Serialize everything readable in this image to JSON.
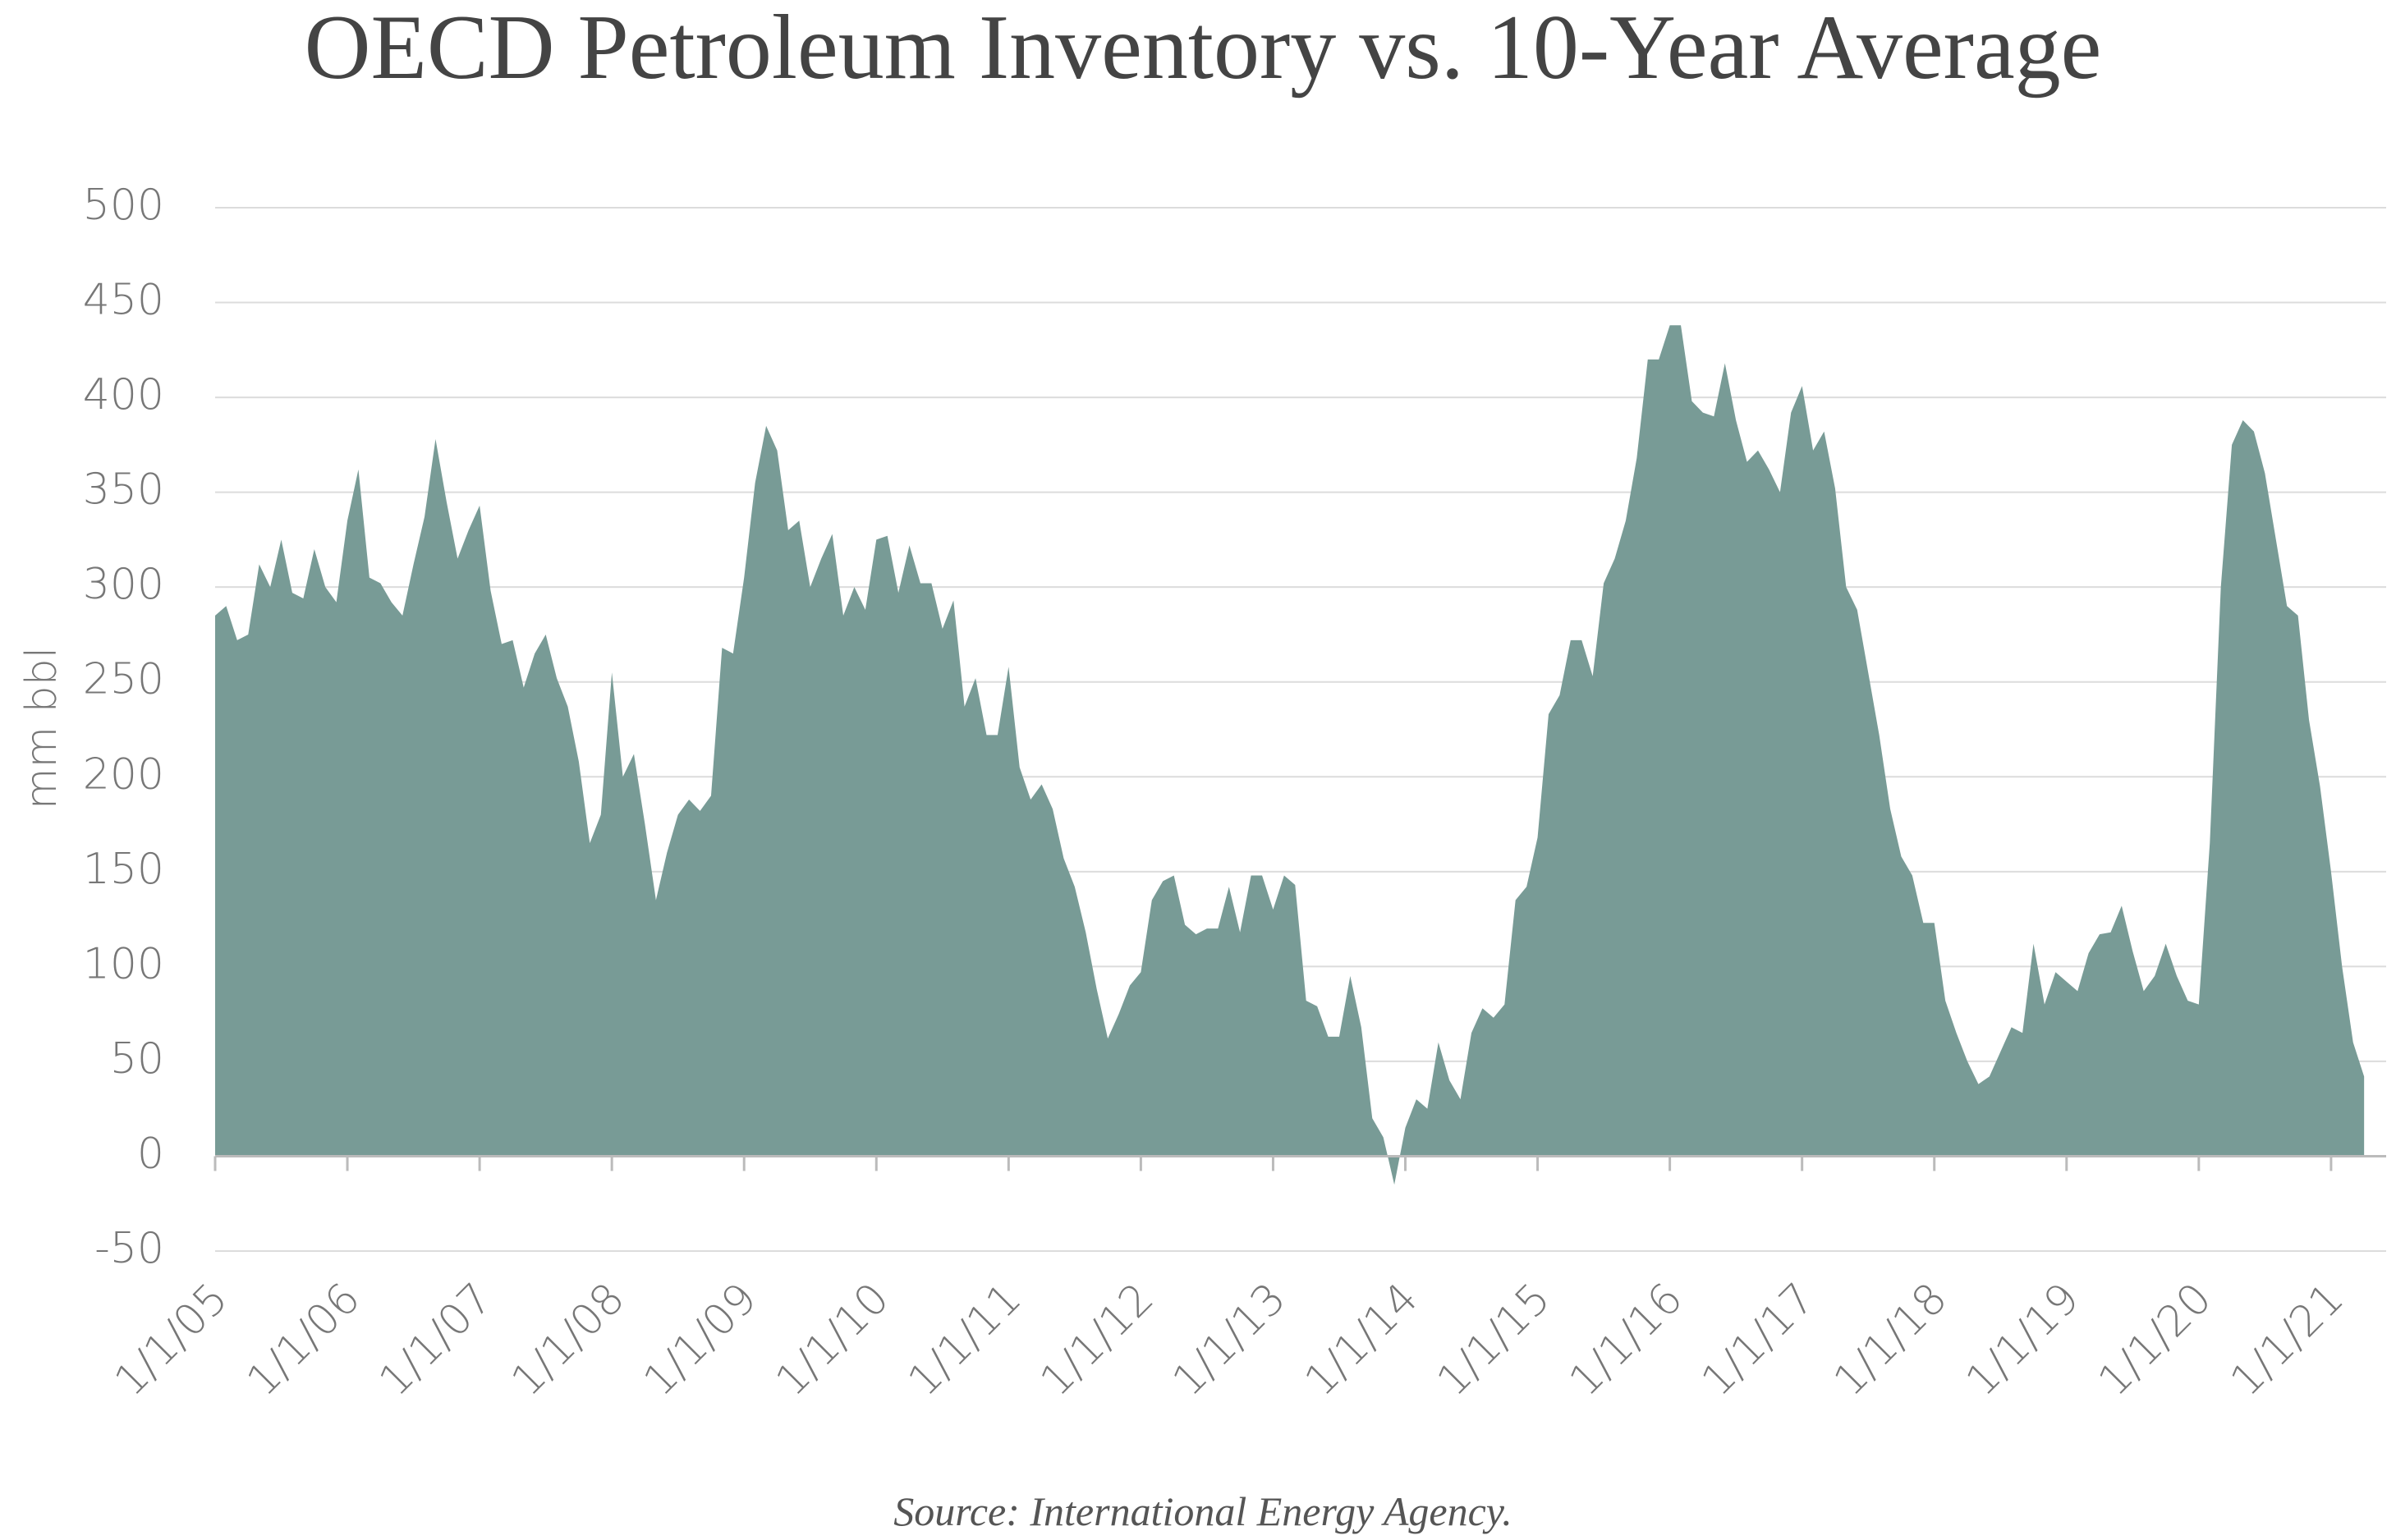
{
  "chart_data": {
    "type": "area",
    "title": "OECD Petroleum Inventory vs. 10-Year Average",
    "ylabel": "mm bbl",
    "source": "Source: International Energy Agency.",
    "color": "#789b96",
    "grid": true,
    "ylim": [
      -50,
      500
    ],
    "yticks": [
      -50,
      0,
      50,
      100,
      150,
      200,
      250,
      300,
      350,
      400,
      450,
      500
    ],
    "xlim": [
      "1/1/05",
      "6/1/21"
    ],
    "xticks": [
      "1/1/05",
      "1/1/06",
      "1/1/07",
      "1/1/08",
      "1/1/09",
      "1/1/10",
      "1/1/11",
      "1/1/12",
      "1/1/13",
      "1/1/14",
      "1/1/15",
      "1/1/16",
      "1/1/17",
      "1/1/18",
      "1/1/19",
      "1/1/20",
      "1/1/21"
    ],
    "x": [
      "1/1/05",
      "2/1/05",
      "3/1/05",
      "4/1/05",
      "5/1/05",
      "6/1/05",
      "7/1/05",
      "8/1/05",
      "9/1/05",
      "10/1/05",
      "11/1/05",
      "12/1/05",
      "1/1/06",
      "2/1/06",
      "3/1/06",
      "4/1/06",
      "5/1/06",
      "6/1/06",
      "7/1/06",
      "8/1/06",
      "9/1/06",
      "10/1/06",
      "11/1/06",
      "12/1/06",
      "1/1/07",
      "2/1/07",
      "3/1/07",
      "4/1/07",
      "5/1/07",
      "6/1/07",
      "7/1/07",
      "8/1/07",
      "9/1/07",
      "10/1/07",
      "11/1/07",
      "12/1/07",
      "1/1/08",
      "2/1/08",
      "3/1/08",
      "4/1/08",
      "5/1/08",
      "6/1/08",
      "7/1/08",
      "8/1/08",
      "9/1/08",
      "10/1/08",
      "11/1/08",
      "12/1/08",
      "1/1/09",
      "2/1/09",
      "3/1/09",
      "4/1/09",
      "5/1/09",
      "6/1/09",
      "7/1/09",
      "8/1/09",
      "9/1/09",
      "10/1/09",
      "11/1/09",
      "12/1/09",
      "1/1/10",
      "2/1/10",
      "3/1/10",
      "4/1/10",
      "5/1/10",
      "6/1/10",
      "7/1/10",
      "8/1/10",
      "9/1/10",
      "10/1/10",
      "11/1/10",
      "12/1/10",
      "1/1/11",
      "2/1/11",
      "3/1/11",
      "4/1/11",
      "5/1/11",
      "6/1/11",
      "7/1/11",
      "8/1/11",
      "9/1/11",
      "10/1/11",
      "11/1/11",
      "12/1/11",
      "1/1/12",
      "2/1/12",
      "3/1/12",
      "4/1/12",
      "5/1/12",
      "6/1/12",
      "7/1/12",
      "8/1/12",
      "9/1/12",
      "10/1/12",
      "11/1/12",
      "12/1/12",
      "1/1/13",
      "2/1/13",
      "3/1/13",
      "4/1/13",
      "5/1/13",
      "6/1/13",
      "7/1/13",
      "8/1/13",
      "9/1/13",
      "10/1/13",
      "11/1/13",
      "12/1/13",
      "1/1/14",
      "2/1/14",
      "3/1/14",
      "4/1/14",
      "5/1/14",
      "6/1/14",
      "7/1/14",
      "8/1/14",
      "9/1/14",
      "10/1/14",
      "11/1/14",
      "12/1/14",
      "1/1/15",
      "2/1/15",
      "3/1/15",
      "4/1/15",
      "5/1/15",
      "6/1/15",
      "7/1/15",
      "8/1/15",
      "9/1/15",
      "10/1/15",
      "11/1/15",
      "12/1/15",
      "1/1/16",
      "2/1/16",
      "3/1/16",
      "4/1/16",
      "5/1/16",
      "6/1/16",
      "7/1/16",
      "8/1/16",
      "9/1/16",
      "10/1/16",
      "11/1/16",
      "12/1/16",
      "1/1/17",
      "2/1/17",
      "3/1/17",
      "4/1/17",
      "5/1/17",
      "6/1/17",
      "7/1/17",
      "8/1/17",
      "9/1/17",
      "10/1/17",
      "11/1/17",
      "12/1/17",
      "1/1/18",
      "2/1/18",
      "3/1/18",
      "4/1/18",
      "5/1/18",
      "6/1/18",
      "7/1/18",
      "8/1/18",
      "9/1/18",
      "10/1/18",
      "11/1/18",
      "12/1/18",
      "1/1/19",
      "2/1/19",
      "3/1/19",
      "4/1/19",
      "5/1/19",
      "6/1/19",
      "7/1/19",
      "8/1/19",
      "9/1/19",
      "10/1/19",
      "11/1/19",
      "12/1/19",
      "1/1/20",
      "2/1/20",
      "3/1/20",
      "4/1/20",
      "5/1/20",
      "6/1/20",
      "7/1/20",
      "8/1/20",
      "9/1/20",
      "10/1/20",
      "11/1/20",
      "12/1/20",
      "1/1/21",
      "2/1/21",
      "3/1/21",
      "4/1/21"
    ],
    "values": [
      285,
      290,
      272,
      275,
      312,
      300,
      325,
      297,
      294,
      320,
      300,
      292,
      335,
      362,
      305,
      302,
      292,
      285,
      312,
      337,
      378,
      345,
      315,
      330,
      343,
      298,
      270,
      272,
      247,
      265,
      275,
      252,
      237,
      208,
      165,
      180,
      255,
      200,
      212,
      175,
      135,
      160,
      180,
      188,
      182,
      190,
      268,
      265,
      305,
      355,
      385,
      372,
      330,
      335,
      300,
      315,
      328,
      285,
      300,
      288,
      325,
      327,
      297,
      322,
      302,
      302,
      278,
      293,
      237,
      252,
      222,
      222,
      258,
      205,
      188,
      196,
      183,
      157,
      142,
      118,
      88,
      62,
      75,
      90,
      97,
      135,
      145,
      148,
      122,
      117,
      120,
      120,
      142,
      118,
      148,
      148,
      130,
      148,
      143,
      82,
      79,
      63,
      63,
      95,
      68,
      20,
      10,
      -15,
      15,
      30,
      25,
      60,
      40,
      30,
      65,
      78,
      73,
      80,
      135,
      142,
      168,
      233,
      243,
      272,
      272,
      253,
      302,
      315,
      335,
      368,
      420,
      420,
      438,
      438,
      398,
      392,
      390,
      418,
      388,
      366,
      372,
      362,
      350,
      392,
      406,
      372,
      382,
      352,
      300,
      288,
      255,
      222,
      183,
      158,
      148,
      123,
      123,
      82,
      65,
      50,
      38,
      42,
      55,
      68,
      65,
      112,
      80,
      97,
      92,
      87,
      107,
      117,
      118,
      132,
      108,
      87,
      95,
      112,
      95,
      82,
      80,
      165,
      300,
      375,
      388,
      382,
      360,
      325,
      290,
      285,
      230,
      195,
      150,
      100,
      60,
      42
    ]
  }
}
